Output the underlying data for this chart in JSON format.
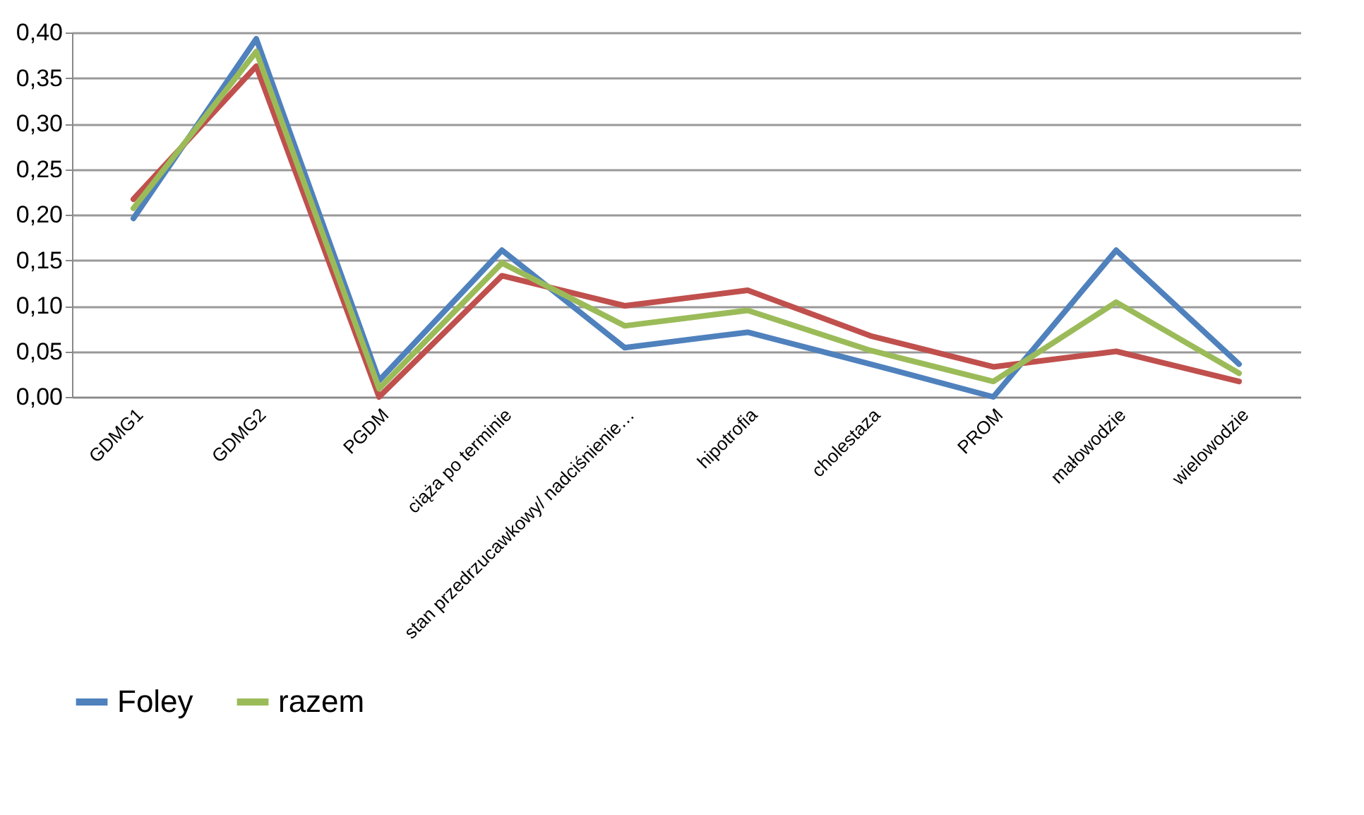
{
  "chart_data": {
    "type": "line",
    "categories": [
      "GDMG1",
      "GDMG2",
      "PGDM",
      "ciąża po terminie",
      "stan przedrzucawkowy/ nadciśnienie…",
      "hipotrofia",
      "cholestaza",
      "PROM",
      "małowodzie",
      "wielowodzie"
    ],
    "series": [
      {
        "name": "Foley",
        "color": "#4f81bd",
        "values": [
          0.196,
          0.393,
          0.018,
          0.161,
          0.054,
          0.071,
          0.036,
          0,
          0.161,
          0.036
        ]
      },
      {
        "color": "#c0504d",
        "values": [
          0.217,
          0.363,
          0,
          0.133,
          0.1,
          0.117,
          0.067,
          0.033,
          0.05,
          0.017
        ]
      },
      {
        "name": "razem",
        "color": "#9bbb59",
        "values": [
          0.207,
          0.379,
          0.009,
          0.147,
          0.078,
          0.095,
          0.051,
          0.017,
          0.104,
          0.026
        ]
      }
    ],
    "ylim": [
      0,
      0.4
    ],
    "yticks": [
      {
        "value": 0,
        "label": "0,00"
      },
      {
        "value": 0.05,
        "label": "0,05"
      },
      {
        "value": 0.1,
        "label": "0,10"
      },
      {
        "value": 0.15,
        "label": "0,15"
      },
      {
        "value": 0.2,
        "label": "0,20"
      },
      {
        "value": 0.25,
        "label": "0,25"
      },
      {
        "value": 0.3,
        "label": "0,30"
      },
      {
        "value": 0.35,
        "label": "0,35"
      },
      {
        "value": 0.4,
        "label": "0,40"
      }
    ],
    "grid": "y",
    "legend": "bottom",
    "marker": "none",
    "line_style": "solid"
  }
}
